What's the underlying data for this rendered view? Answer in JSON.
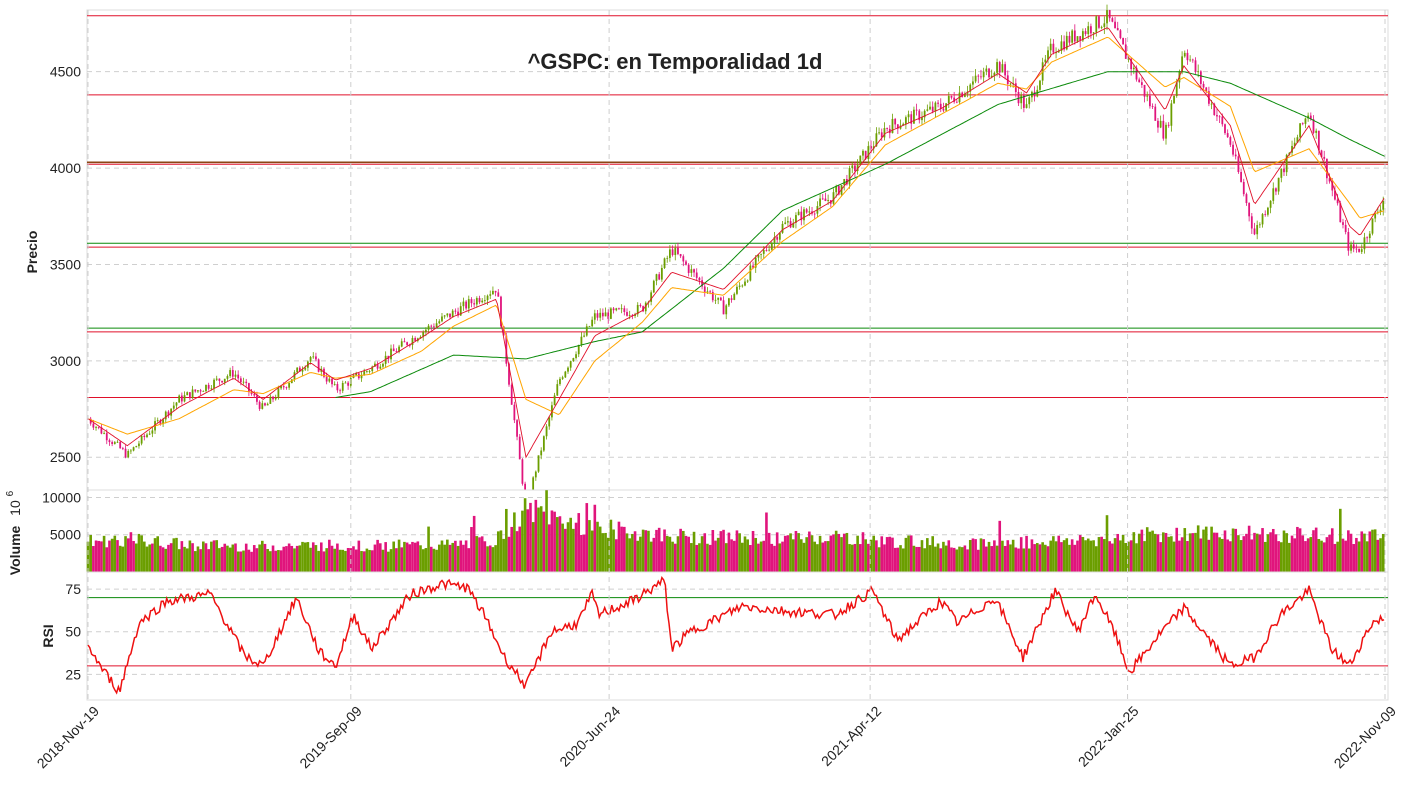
{
  "chart_data": [
    {
      "type": "candlestick",
      "title": "^GSPC: en Temporalidad 1d",
      "ylabel": "Precio",
      "ylim": [
        2330,
        4820
      ],
      "yticks": [
        2500,
        3000,
        3500,
        4000,
        4500
      ],
      "grid": true,
      "colors": {
        "up": "#6b9e00",
        "down": "#e0147c",
        "ma_fast": "#e0102a",
        "ma_mid": "#ffa500",
        "ma_slow": "#0a8a0a"
      },
      "x_dates": [
        "2018-Nov-19",
        "2019-Jan-02",
        "2019-Mar-01",
        "2019-May-01",
        "2019-Jun-03",
        "2019-Jul-26",
        "2019-Aug-23",
        "2019-Oct-01",
        "2019-Nov-27",
        "2020-Jan-02",
        "2020-Feb-19",
        "2020-Mar-23",
        "2020-Apr-29",
        "2020-Jun-08",
        "2020-Jul-31",
        "2020-Sep-02",
        "2020-Oct-30",
        "2021-Jan-04",
        "2021-Mar-01",
        "2021-Apr-29",
        "2021-Jul-01",
        "2021-Sep-02",
        "2021-Oct-04",
        "2021-Nov-01",
        "2022-Jan-03",
        "2022-Mar-08",
        "2022-Mar-29",
        "2022-May-20",
        "2022-Jun-16",
        "2022-Aug-16",
        "2022-Sep-30",
        "2022-Oct-12",
        "2022-Nov-09"
      ],
      "close": [
        2700,
        2510,
        2800,
        2940,
        2750,
        3020,
        2850,
        2960,
        3150,
        3250,
        3380,
        2240,
        2900,
        3230,
        3270,
        3580,
        3270,
        3700,
        3850,
        4210,
        4320,
        4540,
        4310,
        4620,
        4780,
        4170,
        4630,
        4130,
        3660,
        4300,
        3580,
        3580,
        3860
      ],
      "ma_fast": [
        2700,
        2560,
        2760,
        2910,
        2800,
        2990,
        2900,
        2960,
        3120,
        3230,
        3320,
        2500,
        2800,
        3130,
        3260,
        3460,
        3370,
        3680,
        3830,
        4180,
        4310,
        4490,
        4390,
        4590,
        4730,
        4300,
        4530,
        4220,
        3810,
        4220,
        3700,
        3650,
        3850
      ],
      "ma_mid": [
        2700,
        2620,
        2700,
        2850,
        2830,
        2940,
        2910,
        2930,
        3050,
        3180,
        3290,
        2800,
        2720,
        3000,
        3200,
        3380,
        3340,
        3620,
        3800,
        4120,
        4280,
        4440,
        4410,
        4550,
        4680,
        4420,
        4470,
        4320,
        3980,
        4100,
        3820,
        3740,
        3780
      ],
      "ma_slow_dates": [
        "2019-Aug-23",
        "2019-Oct-01",
        "2020-Jan-02",
        "2020-Mar-23",
        "2020-Jun-08",
        "2020-Jul-31",
        "2020-Oct-30",
        "2021-Jan-04",
        "2021-Apr-29",
        "2021-Sep-02",
        "2022-Jan-03",
        "2022-Mar-29",
        "2022-May-20",
        "2022-Aug-16",
        "2022-Sep-30",
        "2022-Nov-09"
      ],
      "ma_slow": [
        2810,
        2840,
        3030,
        3010,
        3100,
        3150,
        3480,
        3780,
        4020,
        4330,
        4500,
        4500,
        4440,
        4260,
        4150,
        4060
      ],
      "hlines": [
        {
          "value": 4790,
          "color": "#e0102a"
        },
        {
          "value": 4380,
          "color": "#e0102a"
        },
        {
          "value": 4030,
          "color": "#8b4513"
        },
        {
          "value": 4020,
          "color": "#e0102a"
        },
        {
          "value": 3610,
          "color": "#0a8a0a"
        },
        {
          "value": 3590,
          "color": "#e0102a"
        },
        {
          "value": 3170,
          "color": "#0a8a0a"
        },
        {
          "value": 3150,
          "color": "#e0102a"
        },
        {
          "value": 2810,
          "color": "#e0102a"
        },
        {
          "value": 2230,
          "color": "#0a8a0a"
        }
      ]
    },
    {
      "type": "bar",
      "ylabel": "Volume",
      "yunit": "10",
      "yunit_exp": "6",
      "ylim": [
        0,
        11000
      ],
      "yticks": [
        5000,
        10000
      ],
      "x_dates": [
        "2018-Nov-19",
        "2019-Jan-02",
        "2019-Mar-01",
        "2019-May-01",
        "2019-Jun-03",
        "2019-Aug-23",
        "2019-Oct-01",
        "2020-Jan-02",
        "2020-Feb-19",
        "2020-Mar-23",
        "2020-Jun-08",
        "2020-Sep-02",
        "2021-Jan-04",
        "2021-Mar-01",
        "2021-Apr-29",
        "2021-Sep-02",
        "2022-Jan-03",
        "2022-Mar-08",
        "2022-Jun-16",
        "2022-Sep-30",
        "2022-Nov-09"
      ],
      "volume": [
        4200,
        4500,
        3800,
        3600,
        3500,
        3700,
        3600,
        3700,
        4400,
        8500,
        6100,
        4900,
        4600,
        4900,
        4200,
        3900,
        4600,
        5300,
        5200,
        4900,
        4800
      ]
    },
    {
      "type": "line",
      "ylabel": "RSI",
      "ylim": [
        10,
        85
      ],
      "yticks": [
        25,
        50,
        75
      ],
      "hlines": [
        {
          "value": 70,
          "color": "#0a8a0a"
        },
        {
          "value": 30,
          "color": "#e0102a"
        }
      ],
      "x_dates": [
        "2018-Nov-19",
        "2018-Dec-05",
        "2018-Dec-24",
        "2019-Jan-15",
        "2019-Feb-15",
        "2019-Apr-05",
        "2019-May-13",
        "2019-Jun-03",
        "2019-Jul-10",
        "2019-Aug-05",
        "2019-Aug-23",
        "2019-Sep-12",
        "2019-Oct-02",
        "2019-Nov-15",
        "2019-Dec-20",
        "2020-Jan-17",
        "2020-Feb-05",
        "2020-Feb-28",
        "2020-Mar-23",
        "2020-Apr-20",
        "2020-May-20",
        "2020-Jun-05",
        "2020-Jun-12",
        "2020-Jul-20",
        "2020-Aug-25",
        "2020-Sep-02",
        "2020-Sep-23",
        "2020-Nov-20",
        "2021-Jan-10",
        "2021-Mar-04",
        "2021-Apr-15",
        "2021-May-12",
        "2021-Jun-30",
        "2021-Jul-19",
        "2021-Aug-30",
        "2021-Sep-30",
        "2021-Nov-05",
        "2021-Nov-30",
        "2021-Dec-20",
        "2022-Jan-10",
        "2022-Jan-27",
        "2022-Mar-01",
        "2022-Mar-29",
        "2022-May-20",
        "2022-Jun-16",
        "2022-Jul-15",
        "2022-Aug-16",
        "2022-Sep-10",
        "2022-Sep-30",
        "2022-Oct-25",
        "2022-Nov-09"
      ],
      "rsi": [
        42,
        28,
        15,
        55,
        68,
        72,
        36,
        30,
        70,
        38,
        30,
        60,
        40,
        72,
        78,
        76,
        60,
        35,
        18,
        50,
        55,
        72,
        60,
        68,
        80,
        40,
        50,
        65,
        62,
        60,
        74,
        45,
        68,
        55,
        70,
        35,
        74,
        50,
        72,
        50,
        26,
        48,
        64,
        30,
        35,
        60,
        74,
        40,
        30,
        55,
        58
      ]
    }
  ],
  "x_axis": {
    "tick_labels": [
      "2018-Nov-19",
      "2019-Sep-09",
      "2020-Jun-24",
      "2021-Apr-12",
      "2022-Jan-25",
      "2022-Nov-09"
    ]
  }
}
